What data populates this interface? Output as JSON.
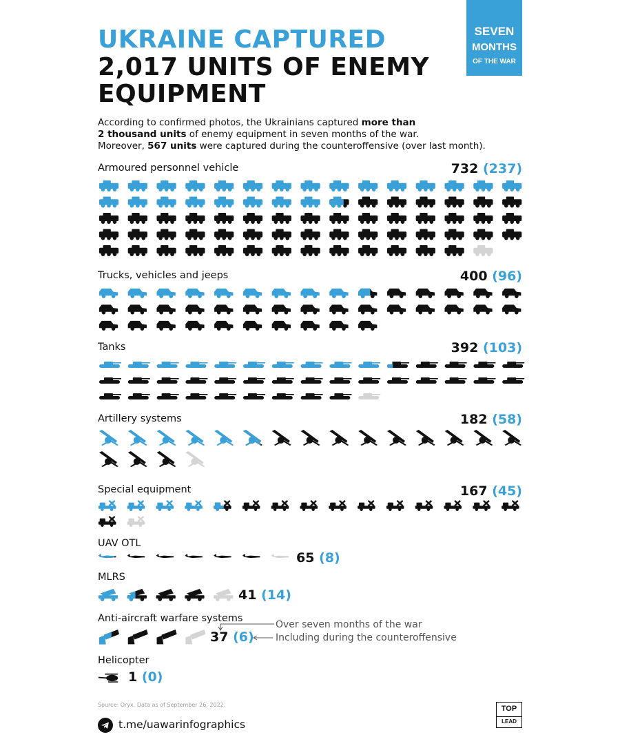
{
  "header": {
    "title_line1": "UKRAINE CAPTURED",
    "title_line2": "2,017 UNITS OF ENEMY",
    "title_line3": "EQUIPMENT",
    "badge_line1": "SEVEN",
    "badge_line2": "MONTHS",
    "badge_line3": "OF THE WAR"
  },
  "intro": {
    "line1_a": "According to confirmed photos, the Ukrainians captured ",
    "line1_b": "more than",
    "line2_a": "2 thousand units",
    "line2_b": " of enemy equipment in seven months of the war.",
    "line3_a": "Moreover, ",
    "line3_b": "567 units",
    "line3_c": " were captured during the counteroffensive (over last month)."
  },
  "colors": {
    "accent": "#3aa0d8",
    "base": "#111111",
    "partial": "#d4d4d4"
  },
  "chart_data": {
    "type": "pictogram",
    "series": [
      {
        "name": "Over seven months of the war"
      },
      {
        "name": "Including during the counteroffensive"
      }
    ],
    "categories": [
      {
        "label": "Armoured personnel vehicle",
        "total": 732,
        "counteroffensive": 237,
        "total_label": "732",
        "counter_label": "(237)",
        "icon": "apc-icon"
      },
      {
        "label": "Trucks, vehicles and jeeps",
        "total": 400,
        "counteroffensive": 96,
        "total_label": "400",
        "counter_label": "(96)",
        "icon": "jeep-icon"
      },
      {
        "label": "Tanks",
        "total": 392,
        "counteroffensive": 103,
        "total_label": "392",
        "counter_label": "(103)",
        "icon": "tank-icon"
      },
      {
        "label": "Artillery systems",
        "total": 182,
        "counteroffensive": 58,
        "total_label": "182",
        "counter_label": "(58)",
        "icon": "artillery-icon"
      },
      {
        "label": "Special equipment",
        "total": 167,
        "counteroffensive": 45,
        "total_label": "167",
        "counter_label": "(45)",
        "icon": "special-equipment-icon"
      },
      {
        "label": "UAV OTL",
        "total": 65,
        "counteroffensive": 8,
        "total_label": "65",
        "counter_label": "(8)",
        "icon": "uav-icon"
      },
      {
        "label": "MLRS",
        "total": 41,
        "counteroffensive": 14,
        "total_label": "41",
        "counter_label": "(14)",
        "icon": "mlrs-icon"
      },
      {
        "label": "Anti-aircraft warfare systems",
        "total": 37,
        "counteroffensive": 6,
        "total_label": "37",
        "counter_label": "(6)",
        "icon": "anti-aircraft-icon"
      },
      {
        "label": "Helicopter",
        "total": 1,
        "counteroffensive": 0,
        "total_label": "1",
        "counter_label": "(0)",
        "icon": "helicopter-icon"
      }
    ]
  },
  "footer": {
    "source": "Source: Oryx. Data as of September 26, 2022.",
    "telegram": "t.me/uawarinfographics",
    "logo_top": "TOP",
    "logo_bottom": "LEAD"
  }
}
